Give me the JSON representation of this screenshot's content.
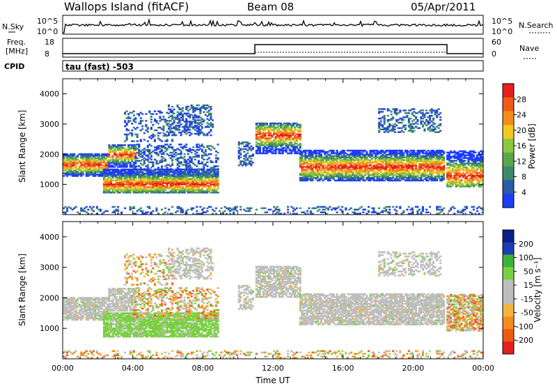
{
  "header": {
    "site": "Wallops Island (fitACF)",
    "beam": "Beam 08",
    "date": "05/Apr/2011"
  },
  "strip_labels": {
    "nsky": "N.Sky",
    "nsearch": "N.Search",
    "freq_line1": "Freq.",
    "freq_line2": "[MHz]",
    "nave": "Nave",
    "cpid": "CPID",
    "cpid_value": "tau (fast) -503",
    "nsky_ticks": [
      "10^5",
      "10^0"
    ],
    "nsearch_ticks": [
      "10^5",
      "10^0"
    ],
    "freq_ticks": [
      "18",
      "8"
    ],
    "nave_ticks": [
      "60",
      "0"
    ]
  },
  "colors": {
    "power": [
      "#1e3cff",
      "#2a5aa8",
      "#3d8a6a",
      "#5aa84a",
      "#8cc83c",
      "#f5c81e",
      "#f58c1e",
      "#f05a14",
      "#e61e1e"
    ],
    "velocity": [
      "#e61e1e",
      "#f05a14",
      "#f58c1e",
      "#f5b43c",
      "#bebebe",
      "#bebebe",
      "#78d23c",
      "#3cb43c",
      "#1e3cb4",
      "#0a1e8c"
    ]
  },
  "chart_data": [
    {
      "type": "heatmap",
      "title": "",
      "xlabel": "Time UT",
      "ylabel": "Slant Range [km]",
      "x_ticks": [
        "00:00",
        "04:00",
        "08:00",
        "12:00",
        "16:00",
        "20:00",
        "00:00"
      ],
      "y_ticks": [
        "1000",
        "2000",
        "3000",
        "4000"
      ],
      "ylim": [
        0,
        4500
      ],
      "colorbar_label": "Power [dB]",
      "colorbar_ticks": [
        "4",
        "8",
        "12",
        "16",
        "20",
        "24",
        "28"
      ]
    },
    {
      "type": "heatmap",
      "title": "",
      "xlabel": "Time UT",
      "ylabel": "Slant Range [km]",
      "x_ticks": [
        "00:00",
        "04:00",
        "08:00",
        "12:00",
        "16:00",
        "20:00",
        "00:00"
      ],
      "y_ticks": [
        "1000",
        "2000",
        "3000",
        "4000"
      ],
      "ylim": [
        0,
        4500
      ],
      "colorbar_label": "Velocity [m s⁻¹]",
      "colorbar_ticks": [
        "200",
        "100",
        "50",
        "15",
        "-15",
        "-50",
        "-100",
        "-200"
      ]
    }
  ]
}
